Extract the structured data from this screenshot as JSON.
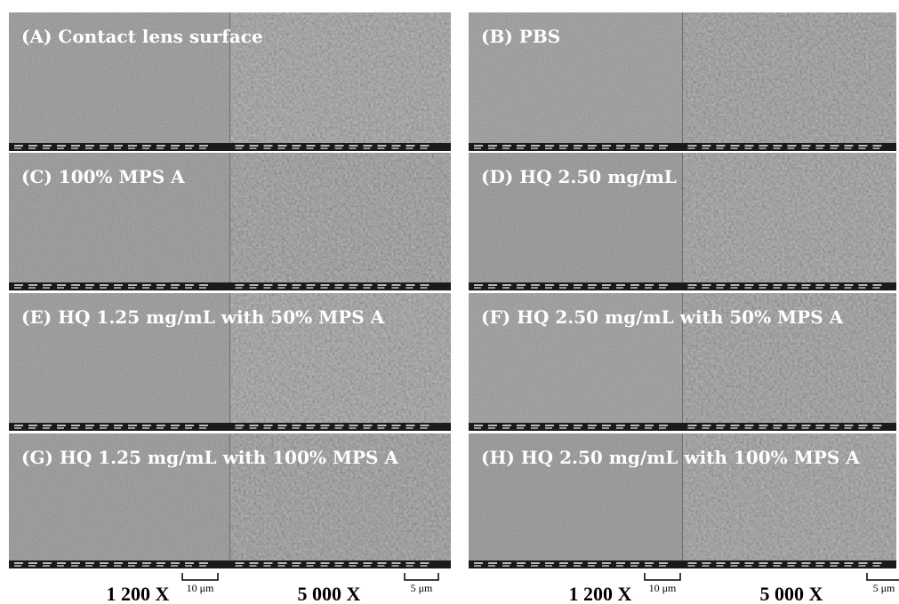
{
  "panels": [
    {
      "label": "(A) Contact lens surface"
    },
    {
      "label": "(B) PBS"
    },
    {
      "label": "(C) 100% MPS A"
    },
    {
      "label": "(D) HQ 2.50 mg/mL"
    },
    {
      "label": "(E) HQ 1.25 mg/mL with 50% MPS A"
    },
    {
      "label": "(F) HQ 2.50 mg/mL with 50% MPS A"
    },
    {
      "label": "(G) HQ 1.25 mg/mL with 100% MPS A"
    },
    {
      "label": "(H) HQ 2.50 mg/mL with 100% MPS A"
    }
  ],
  "columns": [
    {
      "low_mag": "1 200 X",
      "low_scale": "10 μm",
      "high_mag": "5 000 X",
      "high_scale": "5 μm"
    },
    {
      "low_mag": "1 200 X",
      "low_scale": "10 μm",
      "high_mag": "5 000 X",
      "high_scale": "5 μm"
    }
  ]
}
